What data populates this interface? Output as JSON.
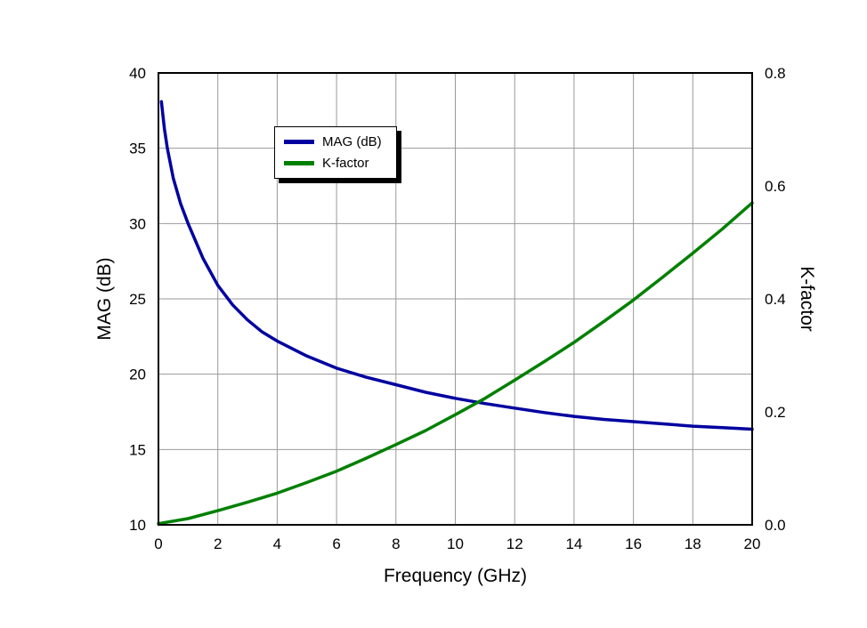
{
  "chart_data": {
    "type": "line",
    "xlabel": "Frequency (GHz)",
    "ylabel_left": "MAG (dB)",
    "ylabel_right": "K-factor",
    "x_range": [
      0,
      20
    ],
    "y_left_range": [
      10,
      40
    ],
    "y_right_range": [
      0.0,
      0.8
    ],
    "x_ticks": [
      0,
      2,
      4,
      6,
      8,
      10,
      12,
      14,
      16,
      18,
      20
    ],
    "y_left_ticks": [
      10,
      15,
      20,
      25,
      30,
      35,
      40
    ],
    "y_right_ticks": [
      0.0,
      0.2,
      0.4,
      0.6,
      0.8
    ],
    "y_right_tick_labels": [
      "0.0",
      "0.2",
      "0.4",
      "0.6",
      "0.8"
    ],
    "grid": true,
    "grid_color": "#9a9a9a",
    "frame_color": "#000000",
    "legend_position": "upper-left-inside",
    "series": [
      {
        "name": "MAG (dB)",
        "color": "#0000A0",
        "axis": "left",
        "x": [
          0.1,
          0.2,
          0.3,
          0.5,
          0.75,
          1,
          1.5,
          2,
          2.5,
          3,
          3.5,
          4,
          5,
          6,
          7,
          8,
          9,
          10,
          11,
          12,
          13,
          14,
          15,
          16,
          17,
          18,
          19,
          20
        ],
        "y": [
          38.1,
          36.3,
          35.0,
          33.0,
          31.3,
          30.0,
          27.7,
          25.9,
          24.6,
          23.6,
          22.8,
          22.2,
          21.2,
          20.4,
          19.8,
          19.3,
          18.8,
          18.4,
          18.05,
          17.75,
          17.45,
          17.2,
          17.0,
          16.85,
          16.7,
          16.55,
          16.45,
          16.35
        ]
      },
      {
        "name": "K-factor",
        "color": "#008000",
        "axis": "right",
        "x": [
          0,
          1,
          2,
          3,
          4,
          5,
          6,
          7,
          8,
          9,
          10,
          11,
          12,
          13,
          14,
          15,
          16,
          17,
          18,
          19,
          20
        ],
        "y": [
          0.002,
          0.011,
          0.025,
          0.04,
          0.056,
          0.075,
          0.095,
          0.118,
          0.142,
          0.167,
          0.195,
          0.224,
          0.256,
          0.289,
          0.323,
          0.36,
          0.398,
          0.439,
          0.481,
          0.524,
          0.57
        ]
      }
    ]
  }
}
